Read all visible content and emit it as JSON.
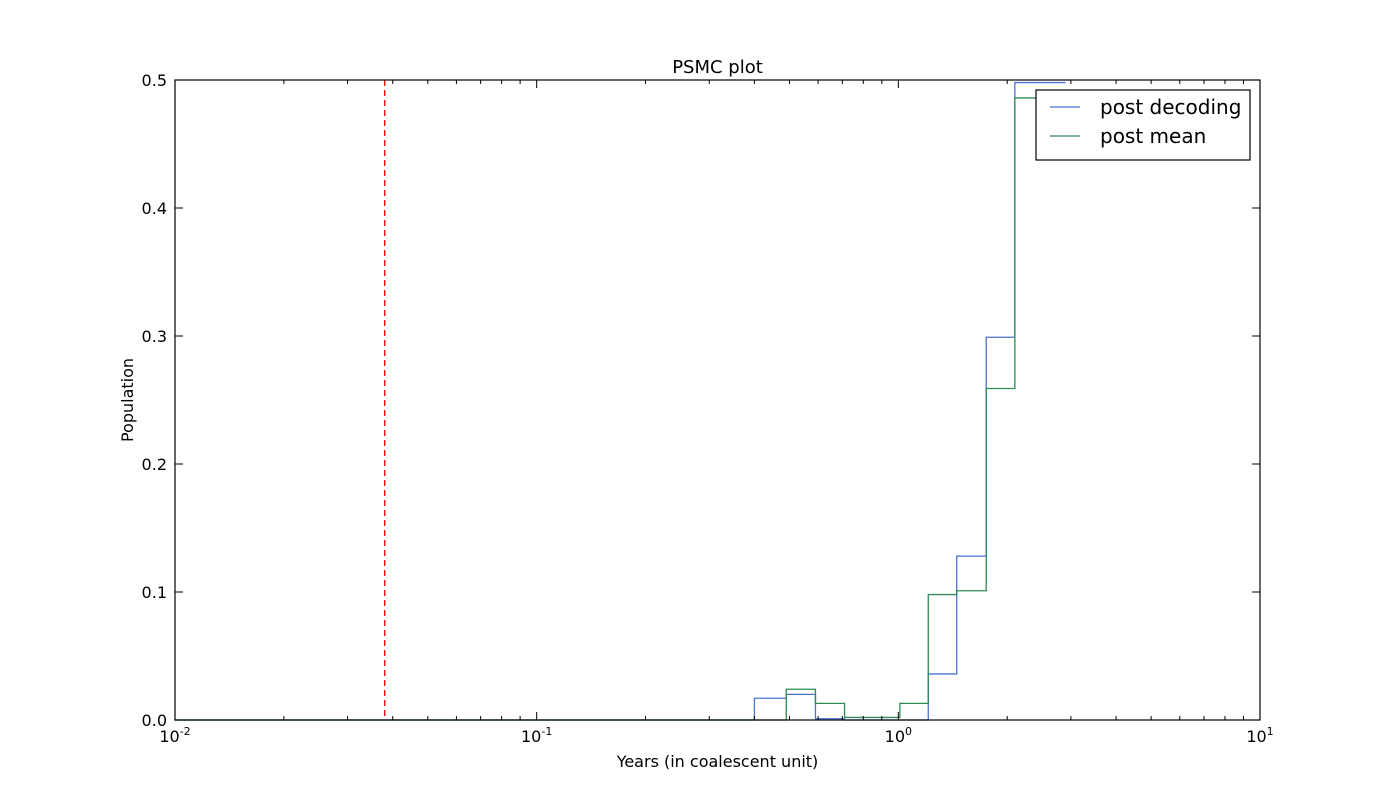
{
  "chart_data": {
    "type": "line",
    "title": "PSMC plot",
    "xlabel": "Years (in coalescent unit)",
    "ylabel": "Population",
    "xscale": "log",
    "xlim": [
      0.01,
      10
    ],
    "ylim": [
      0,
      0.5
    ],
    "x_ticks": [
      {
        "base": "10",
        "exp": "-2",
        "value": 0.01
      },
      {
        "base": "10",
        "exp": "-1",
        "value": 0.1
      },
      {
        "base": "10",
        "exp": "0",
        "value": 1
      },
      {
        "base": "10",
        "exp": "1",
        "value": 10
      }
    ],
    "y_ticks": [
      {
        "label": "0.0",
        "value": 0.0
      },
      {
        "label": "0.1",
        "value": 0.1
      },
      {
        "label": "0.2",
        "value": 0.2
      },
      {
        "label": "0.3",
        "value": 0.3
      },
      {
        "label": "0.4",
        "value": 0.4
      },
      {
        "label": "0.5",
        "value": 0.5
      }
    ],
    "vline": {
      "x": 0.038,
      "color": "#ff0000",
      "style": "dashed"
    },
    "legend_position": "top-right",
    "series": [
      {
        "name": "post decoding",
        "color": "#4c72d6",
        "step": "post",
        "points": [
          [
            0.01,
            0.0
          ],
          [
            0.4,
            0.0
          ],
          [
            0.4,
            0.017
          ],
          [
            0.49,
            0.017
          ],
          [
            0.49,
            0.02
          ],
          [
            0.59,
            0.02
          ],
          [
            0.59,
            0.001
          ],
          [
            0.71,
            0.001
          ],
          [
            0.71,
            0.0
          ],
          [
            0.85,
            0.0
          ],
          [
            0.85,
            0.0
          ],
          [
            1.01,
            0.0
          ],
          [
            1.01,
            0.0
          ],
          [
            1.21,
            0.0
          ],
          [
            1.21,
            0.036
          ],
          [
            1.45,
            0.036
          ],
          [
            1.45,
            0.128
          ],
          [
            1.75,
            0.128
          ],
          [
            1.75,
            0.299
          ],
          [
            2.1,
            0.299
          ],
          [
            2.1,
            0.498
          ],
          [
            2.9,
            0.498
          ]
        ]
      },
      {
        "name": "post mean",
        "color": "#2e8b57",
        "step": "post",
        "points": [
          [
            0.01,
            0.0
          ],
          [
            0.49,
            0.0
          ],
          [
            0.49,
            0.024
          ],
          [
            0.59,
            0.024
          ],
          [
            0.59,
            0.013
          ],
          [
            0.71,
            0.013
          ],
          [
            0.71,
            0.002
          ],
          [
            0.85,
            0.002
          ],
          [
            0.85,
            0.002
          ],
          [
            1.01,
            0.002
          ],
          [
            1.01,
            0.013
          ],
          [
            1.21,
            0.013
          ],
          [
            1.21,
            0.098
          ],
          [
            1.45,
            0.098
          ],
          [
            1.45,
            0.101
          ],
          [
            1.75,
            0.101
          ],
          [
            1.75,
            0.259
          ],
          [
            2.1,
            0.259
          ],
          [
            2.1,
            0.486
          ],
          [
            2.45,
            0.486
          ]
        ]
      }
    ]
  }
}
